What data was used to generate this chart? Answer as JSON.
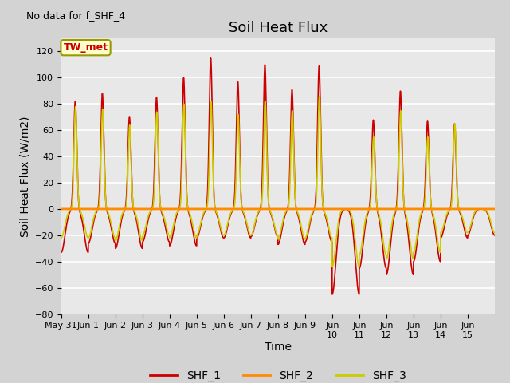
{
  "title": "Soil Heat Flux",
  "ylabel": "Soil Heat Flux (W/m2)",
  "xlabel": "Time",
  "no_data_label": "No data for f_SHF_4",
  "tw_met_label": "TW_met",
  "ylim": [
    -80,
    130
  ],
  "yticks": [
    -80,
    -60,
    -40,
    -20,
    0,
    20,
    40,
    60,
    80,
    100,
    120
  ],
  "fig_bg": "#d3d3d3",
  "plot_bg": "#e8e8e8",
  "legend_entries": [
    "SHF_1",
    "SHF_2",
    "SHF_3"
  ],
  "shf1_color": "#cc0000",
  "shf2_color": "#ff8c00",
  "shf3_color": "#cccc00",
  "title_fontsize": 13,
  "axis_label_fontsize": 10,
  "tick_fontsize": 8
}
